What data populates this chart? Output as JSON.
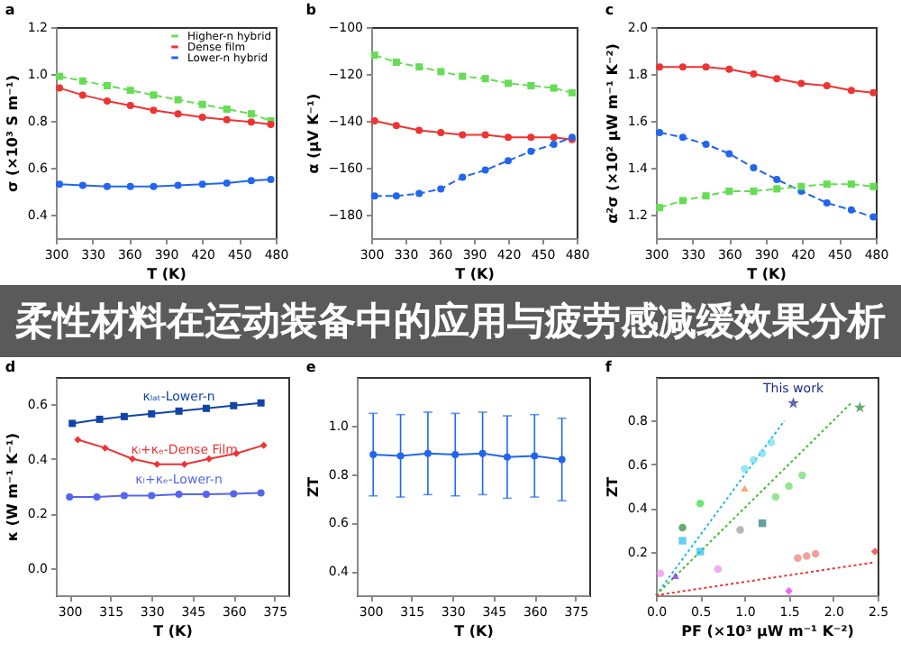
{
  "chart_data": [
    {
      "type": "line",
      "title": "a",
      "xlabel": "T (K)",
      "ylabel": "σ (×10³ S m⁻¹)",
      "xlim": [
        300,
        480
      ],
      "xticks": [
        300,
        330,
        360,
        390,
        420,
        450,
        480
      ],
      "ylim": [
        0.3,
        1.2
      ],
      "yticks": [
        0.4,
        0.6,
        0.8,
        {
          "value": 1,
          "label": "1.0"
        },
        1.2
      ],
      "legend": "top right",
      "x": [
        303,
        322,
        342,
        361,
        380,
        400,
        420,
        440,
        460,
        476
      ],
      "series": [
        {
          "name": "Higher-n hybrid",
          "color": "#66dd55",
          "marker": "square",
          "line_style": "dashed",
          "values": [
            0.99,
            0.97,
            0.95,
            0.93,
            0.91,
            0.89,
            0.87,
            0.85,
            0.83,
            0.8
          ]
        },
        {
          "name": "Dense film",
          "color": "#ee3333",
          "marker": "circle",
          "line_style": "solid",
          "values": [
            0.94,
            0.91,
            0.885,
            0.865,
            0.845,
            0.83,
            0.815,
            0.805,
            0.795,
            0.785
          ]
        },
        {
          "name": "Lower-n hybrid",
          "color": "#2266ee",
          "marker": "circle",
          "line_style": "solid",
          "values": [
            0.53,
            0.525,
            0.52,
            0.52,
            0.52,
            0.525,
            0.53,
            0.535,
            0.545,
            0.55
          ]
        }
      ]
    },
    {
      "type": "line",
      "title": "b",
      "xlabel": "T (K)",
      "ylabel": "α (μV K⁻¹)",
      "xlim": [
        300,
        480
      ],
      "xticks": [
        300,
        330,
        360,
        390,
        420,
        450,
        480
      ],
      "ylim": [
        -190,
        -100
      ],
      "yticks": [
        -180,
        -160,
        -140,
        -120,
        -100
      ],
      "x": [
        303,
        322,
        342,
        361,
        380,
        400,
        420,
        440,
        460,
        476
      ],
      "series": [
        {
          "color": "#66dd55",
          "marker": "square",
          "line_style": "dashed",
          "values": [
            -112,
            -115,
            -117,
            -119,
            -121,
            -122,
            -124,
            -125,
            -126,
            -128
          ]
        },
        {
          "color": "#ee3333",
          "marker": "circle",
          "line_style": "solid",
          "values": [
            -140,
            -142,
            -144,
            -145,
            -146,
            -146,
            -147,
            -147,
            -147,
            -148
          ]
        },
        {
          "color": "#2266ee",
          "marker": "circle",
          "line_style": "dashed",
          "values": [
            -172,
            -172,
            -171,
            -169,
            -164,
            -161,
            -157,
            -153,
            -150,
            -147
          ]
        }
      ]
    },
    {
      "type": "line",
      "title": "c",
      "xlabel": "T (K)",
      "ylabel": "α²σ (×10² μW m⁻¹ K⁻²)",
      "xlim": [
        300,
        480
      ],
      "xticks": [
        300,
        330,
        360,
        390,
        420,
        450,
        480
      ],
      "ylim": [
        1.1,
        2.0
      ],
      "yticks": [
        1.2,
        1.4,
        1.6,
        1.8,
        {
          "value": 2,
          "label": "2.0"
        }
      ],
      "x": [
        303,
        322,
        341,
        360,
        380,
        399,
        419,
        440,
        460,
        478
      ],
      "series": [
        {
          "color": "#ee3333",
          "marker": "circle",
          "line_style": "solid",
          "values": [
            1.83,
            1.83,
            1.83,
            1.82,
            1.8,
            1.78,
            1.76,
            1.75,
            1.73,
            1.72
          ]
        },
        {
          "color": "#2266ee",
          "marker": "circle",
          "line_style": "dashed",
          "values": [
            1.55,
            1.53,
            1.5,
            1.46,
            1.4,
            1.35,
            1.3,
            1.25,
            1.22,
            1.19
          ]
        },
        {
          "color": "#66dd55",
          "marker": "square",
          "line_style": "dashed",
          "values": [
            1.23,
            1.26,
            1.28,
            1.3,
            1.3,
            1.31,
            1.32,
            1.33,
            1.33,
            1.32
          ]
        }
      ]
    },
    {
      "type": "other",
      "title": "柔性材料在运动装备中的应用与疲劳感减缓效果分析"
    },
    {
      "type": "line",
      "title": "d",
      "xlabel": "T (K)",
      "ylabel": "κ (W m⁻¹ K⁻¹)",
      "xlim": [
        295,
        380
      ],
      "xticks": [
        300,
        315,
        330,
        345,
        360,
        375
      ],
      "ylim": [
        -0.1,
        0.7
      ],
      "yticks": [
        {
          "value": 0,
          "label": "0.0"
        },
        0.2,
        0.4,
        0.6
      ],
      "series": [
        {
          "name": "κₗₐₜ-Lower-n",
          "color": "#1144aa",
          "marker": "square",
          "line_style": "solid",
          "x": [
            301,
            311,
            320,
            330,
            340,
            350,
            360,
            370
          ],
          "values": [
            0.53,
            0.545,
            0.555,
            0.565,
            0.575,
            0.585,
            0.595,
            0.605
          ]
        },
        {
          "name": "κₗ+κₑ-Dense Film",
          "color": "#ee3333",
          "marker": "diamond",
          "line_style": "solid",
          "x": [
            303,
            313,
            323,
            332,
            342,
            351,
            361,
            371
          ],
          "values": [
            0.47,
            0.44,
            0.4,
            0.38,
            0.38,
            0.4,
            0.42,
            0.45
          ]
        },
        {
          "name": "κₗ+κₑ-Lower-n",
          "color": "#5566ee",
          "marker": "circle",
          "line_style": "solid",
          "x": [
            300,
            310,
            320,
            330,
            340,
            350,
            360,
            370
          ],
          "values": [
            0.26,
            0.26,
            0.265,
            0.265,
            0.27,
            0.27,
            0.272,
            0.275
          ]
        }
      ]
    },
    {
      "type": "line",
      "title": "e",
      "xlabel": "T (K)",
      "ylabel": "ZT",
      "xlim": [
        295,
        380
      ],
      "xticks": [
        300,
        315,
        330,
        345,
        360,
        375
      ],
      "ylim": [
        0.3,
        1.2
      ],
      "yticks": [
        0.4,
        0.6,
        0.8,
        {
          "value": 1,
          "label": "1.0"
        }
      ],
      "x": [
        301,
        311,
        321,
        331,
        341,
        350,
        360,
        370
      ],
      "series": [
        {
          "color": "#2266ee",
          "marker": "circle",
          "line_style": "solid",
          "values": [
            0.88,
            0.875,
            0.885,
            0.88,
            0.885,
            0.87,
            0.875,
            0.86
          ],
          "errors": [
            0.17,
            0.17,
            0.17,
            0.17,
            0.17,
            0.17,
            0.17,
            0.17
          ]
        }
      ]
    },
    {
      "type": "scatter",
      "title": "f",
      "xlabel": "PF (×10³ μW m⁻¹ K⁻²)",
      "ylabel": "ZT",
      "xlim": [
        0,
        2.5
      ],
      "xticks": [
        {
          "value": 0,
          "label": "0.0"
        },
        0.5,
        {
          "value": 1,
          "label": "1.0"
        },
        1.5,
        {
          "value": 2,
          "label": "2.0"
        },
        2.5
      ],
      "ylim": [
        0,
        1.0
      ],
      "yticks": [
        0.2,
        0.4,
        0.6,
        0.8
      ],
      "series": [
        {
          "type": "line",
          "color": "#22bbdd",
          "line_style": "dotted",
          "x": [
            0,
            1.45
          ],
          "values": [
            0,
            0.8
          ]
        },
        {
          "type": "line",
          "color": "#44bb33",
          "line_style": "dotted",
          "x": [
            0,
            2.2
          ],
          "values": [
            0,
            0.88
          ]
        },
        {
          "type": "line",
          "color": "#ee3333",
          "line_style": "dotted",
          "x": [
            0,
            2.45
          ],
          "values": [
            0,
            0.15
          ]
        },
        {
          "name": "This work",
          "color": "#1a2a88",
          "marker": "star",
          "x": [
            1.55
          ],
          "values": [
            0.88
          ]
        },
        {
          "color": "#228833",
          "marker": "star",
          "x": [
            2.3
          ],
          "values": [
            0.86
          ]
        },
        {
          "color": "#228833",
          "marker": "circle",
          "x": [
            0.3
          ],
          "values": [
            0.31
          ]
        },
        {
          "color": "#33dd33",
          "marker": "circle",
          "x": [
            0.5
          ],
          "values": [
            0.42
          ]
        },
        {
          "color": "#22bbee",
          "marker": "square",
          "x": [
            0.3,
            0.5
          ],
          "values": [
            0.25,
            0.2
          ]
        },
        {
          "color": "#ee8833",
          "marker": "triangle",
          "x": [
            1.0
          ],
          "values": [
            0.49
          ]
        },
        {
          "color": "#227777",
          "marker": "square",
          "x": [
            1.2
          ],
          "values": [
            0.33
          ]
        },
        {
          "color": "#ee88ee",
          "marker": "circle",
          "x": [
            0.05,
            0.7
          ],
          "values": [
            0.1,
            0.12
          ]
        },
        {
          "color": "#7722ee",
          "marker": "triangle",
          "x": [
            0.22
          ],
          "values": [
            0.09
          ]
        },
        {
          "color": "#ee22ee",
          "marker": "diamond",
          "x": [
            1.5
          ],
          "values": [
            0.02
          ]
        },
        {
          "color": "#ee2222",
          "marker": "diamond",
          "x": [
            2.47
          ],
          "values": [
            0.2
          ]
        },
        {
          "color": "#999999",
          "marker": "circle",
          "x": [
            0.95
          ],
          "values": [
            0.3
          ]
        },
        {
          "color": "#66dd66",
          "marker": "circle",
          "x": [
            1.35,
            1.5,
            1.65
          ],
          "values": [
            0.45,
            0.5,
            0.55
          ]
        },
        {
          "color": "#66ddee",
          "marker": "circle",
          "x": [
            1.0,
            1.1,
            1.2,
            1.3
          ],
          "values": [
            0.58,
            0.62,
            0.65,
            0.7
          ]
        },
        {
          "color": "#ee7777",
          "marker": "circle",
          "x": [
            1.6,
            1.7,
            1.8
          ],
          "values": [
            0.17,
            0.18,
            0.19
          ]
        }
      ]
    }
  ]
}
